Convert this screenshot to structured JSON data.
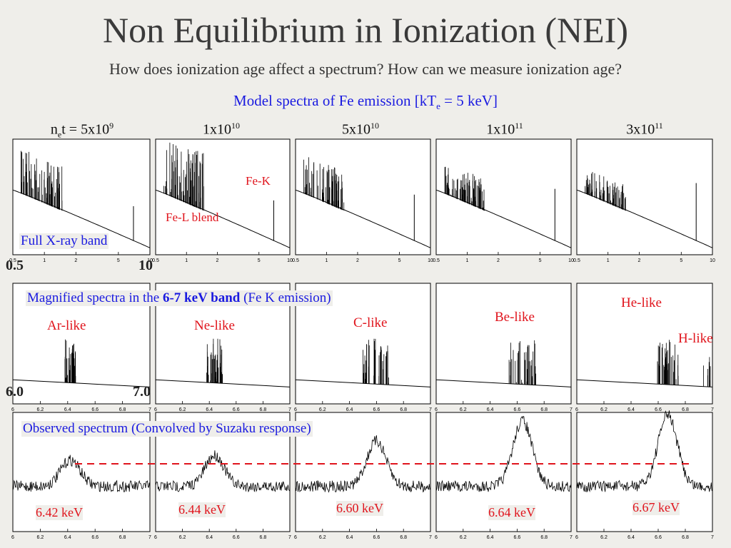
{
  "title": "Non Equilibrium in Ionization (NEI)",
  "subtitle": "How does ionization age affect a spectrum? How can we measure ionization age?",
  "model_caption": {
    "text": "Model spectra of Fe emission  [kT",
    "sub": "e",
    "tail": " = 5 keV]"
  },
  "columns": [
    {
      "prefix": "n",
      "prefix_sub": "e",
      "prefix_tail": "t = ",
      "base": "5x10",
      "exp": "9"
    },
    {
      "prefix": "",
      "prefix_sub": "",
      "prefix_tail": "",
      "base": "1x10",
      "exp": "10"
    },
    {
      "prefix": "",
      "prefix_sub": "",
      "prefix_tail": "",
      "base": "5x10",
      "exp": "10"
    },
    {
      "prefix": "",
      "prefix_sub": "",
      "prefix_tail": "",
      "base": "1x10",
      "exp": "11"
    },
    {
      "prefix": "",
      "prefix_sub": "",
      "prefix_tail": "",
      "base": "3x10",
      "exp": "11"
    }
  ],
  "row1": {
    "ticks": [
      "0.5",
      "1",
      "2",
      "5",
      "10"
    ],
    "axis_min_label": "0.5",
    "axis_max_label": "10",
    "band_label": "Full X-ray band",
    "fe_l_label": "Fe-L blend",
    "fe_k_label": "Fe-K"
  },
  "row2": {
    "ticks": [
      "6",
      "6.2",
      "6.4",
      "6.6",
      "6.8",
      "7"
    ],
    "axis_min_label": "6.0",
    "axis_max_label": "7.0",
    "caption_pre": "Magnified spectra in the ",
    "caption_bold": "6-7 keV band",
    "caption_post": "  (Fe K emission)",
    "ion_labels": [
      "Ar-like",
      "Ne-like",
      "C-like",
      "Be-like",
      "He-like"
    ],
    "h_like_label": "H-like"
  },
  "row3": {
    "ticks": [
      "6",
      "6.2",
      "6.4",
      "6.6",
      "6.8",
      "7"
    ],
    "caption": "Observed spectrum  (Convolved by Suzaku response)",
    "energies": [
      "6.42 keV",
      "6.44 keV",
      "6.60 keV",
      "6.64 keV",
      "6.67 keV"
    ]
  },
  "colors": {
    "red": "#e0141c",
    "blue": "#1a1ae0",
    "background": "#efeeea"
  }
}
